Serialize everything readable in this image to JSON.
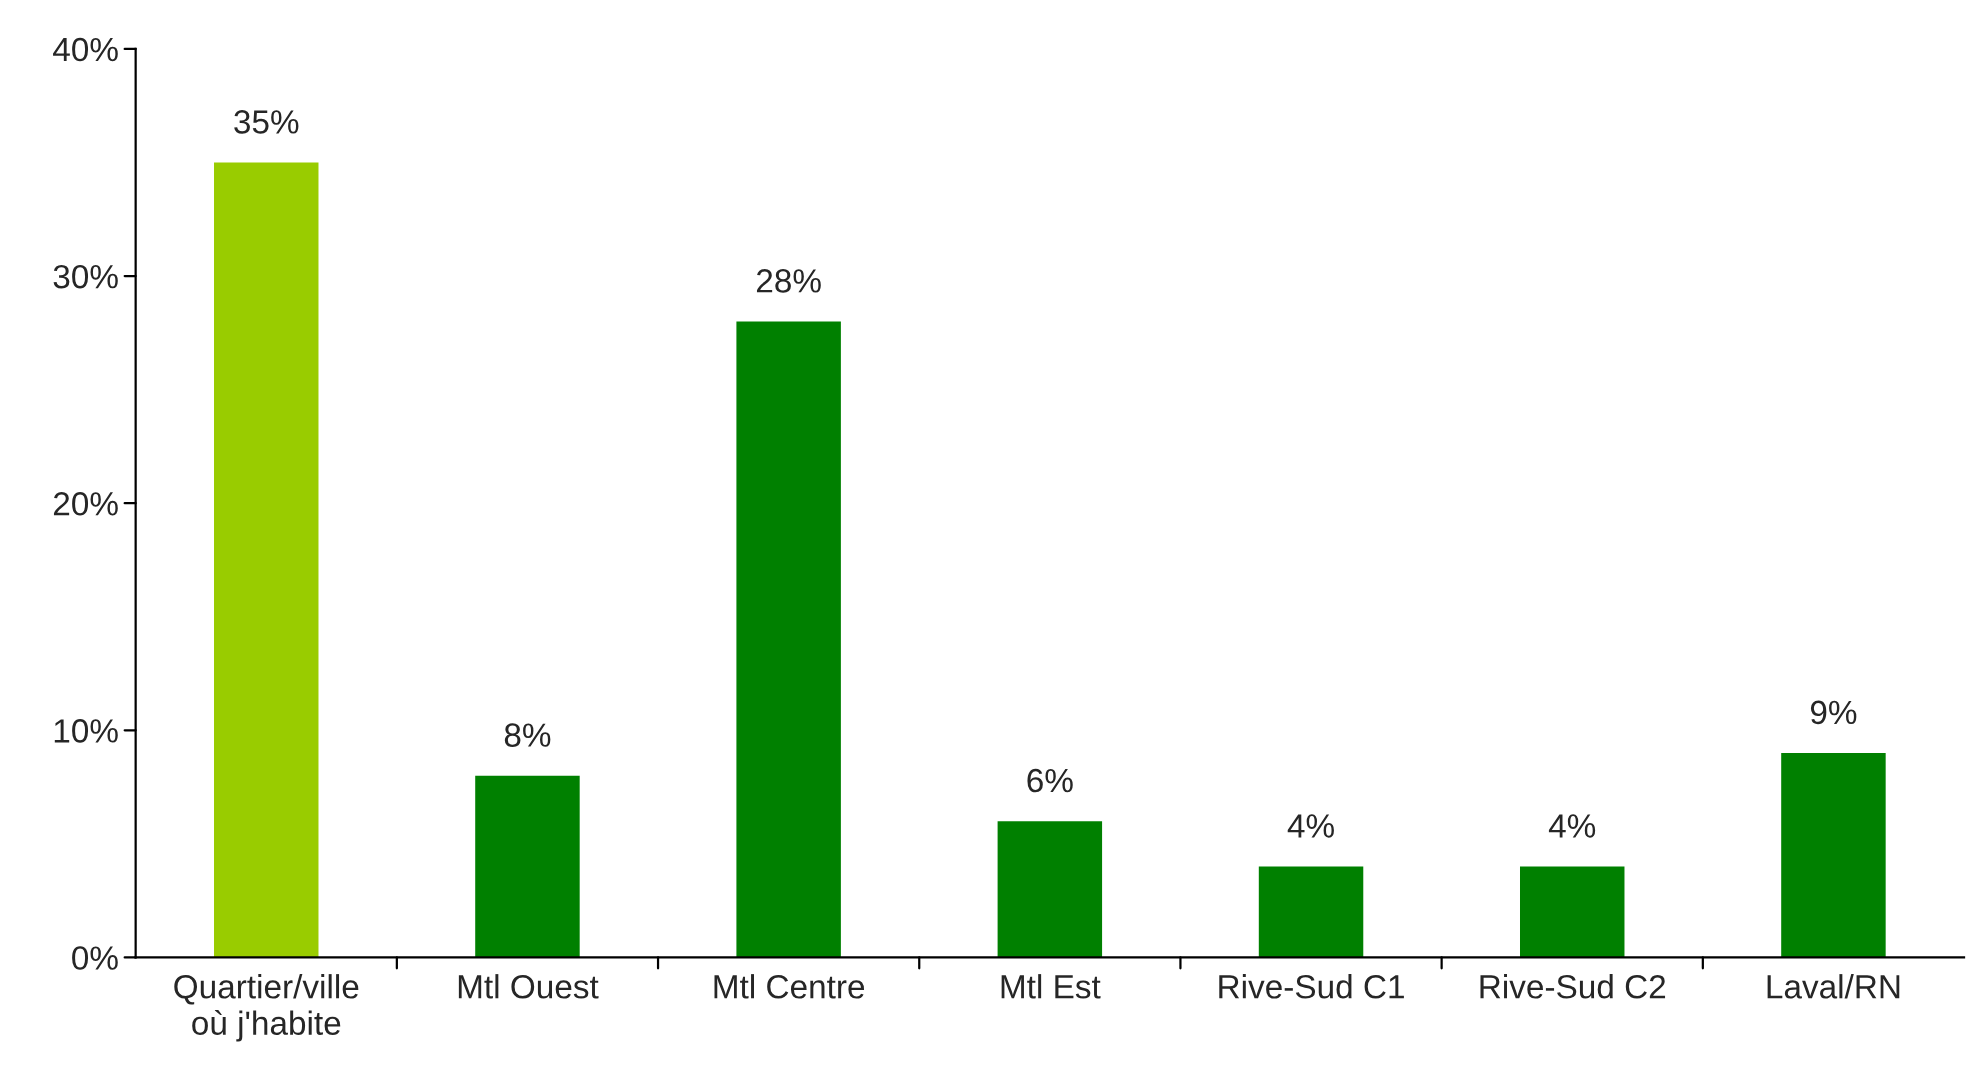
{
  "chart_data": {
    "type": "bar",
    "categories": [
      "Quartier/ville\noù j'habite",
      "Mtl Ouest",
      "Mtl Centre",
      "Mtl Est",
      "Rive-Sud C1",
      "Rive-Sud C2",
      "Laval/RN"
    ],
    "values": [
      35,
      8,
      28,
      6,
      4,
      4,
      9
    ],
    "colors": [
      "#99cc00",
      "#008000",
      "#008000",
      "#008000",
      "#008000",
      "#008000",
      "#008000"
    ],
    "value_labels": [
      "35%",
      "8%",
      "28%",
      "6%",
      "4%",
      "4%",
      "9%"
    ],
    "ylim": [
      0,
      40
    ],
    "yticks": [
      {
        "value": 0,
        "label": "0%"
      },
      {
        "value": 10,
        "label": "10%"
      },
      {
        "value": 20,
        "label": "20%"
      },
      {
        "value": 30,
        "label": "30%"
      },
      {
        "value": 40,
        "label": "40%"
      }
    ],
    "grid": false,
    "legend": false
  }
}
